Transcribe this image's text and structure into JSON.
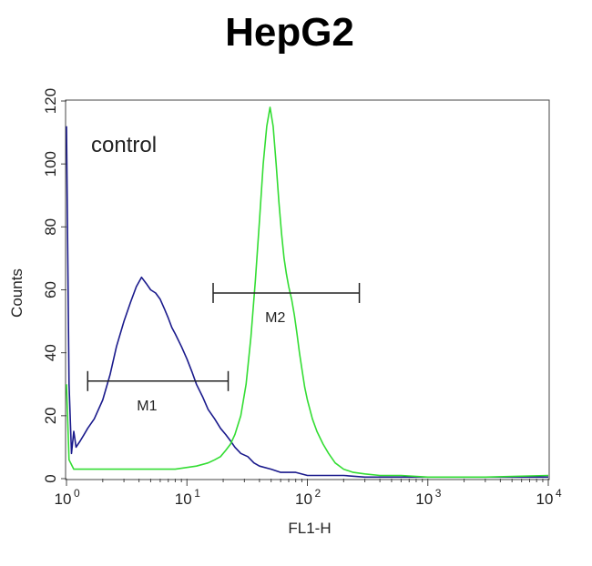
{
  "chart_data": {
    "type": "line",
    "title": "HepG2",
    "xlabel": "FL1-H",
    "ylabel": "Counts",
    "x_scale": "log",
    "xlim": [
      1,
      10000
    ],
    "ylim": [
      0,
      120
    ],
    "x_ticks": [
      {
        "base": "10",
        "exp": "0",
        "value": 1
      },
      {
        "base": "10",
        "exp": "1",
        "value": 10
      },
      {
        "base": "10",
        "exp": "2",
        "value": 100
      },
      {
        "base": "10",
        "exp": "3",
        "value": 1000
      },
      {
        "base": "10",
        "exp": "4",
        "value": 10000
      }
    ],
    "y_ticks": [
      "0",
      "20",
      "40",
      "60",
      "80",
      "100",
      "120"
    ],
    "annotation": "control",
    "grid": false,
    "series": [
      {
        "color": "#1a1a8c",
        "x": [
          1,
          1.05,
          1.1,
          1.15,
          1.2,
          1.3,
          1.4,
          1.5,
          1.7,
          2.0,
          2.3,
          2.6,
          3.0,
          3.4,
          3.8,
          4.2,
          4.6,
          5.0,
          5.5,
          6.0,
          6.5,
          7.0,
          7.5,
          8.0,
          9.0,
          10,
          11,
          12,
          13.5,
          15,
          17,
          19,
          21,
          23,
          25,
          28,
          32,
          36,
          40,
          50,
          60,
          80,
          100,
          150,
          200,
          300,
          500,
          1000,
          3000,
          10000
        ],
        "y": [
          112,
          30,
          8,
          15,
          10,
          12,
          14,
          16,
          19,
          25,
          33,
          42,
          50,
          56,
          61,
          64,
          62,
          60,
          59,
          57,
          54,
          51,
          48,
          46,
          42,
          38,
          34,
          30,
          26,
          22,
          19,
          16,
          14,
          12,
          10,
          8,
          7,
          5,
          4,
          3,
          2,
          2,
          1,
          1,
          1,
          0.5,
          0.5,
          0.5,
          0.5,
          0.5
        ]
      },
      {
        "color": "#33dd33",
        "x": [
          1,
          1.05,
          1.15,
          1.5,
          2,
          3,
          5,
          8,
          12,
          15,
          17,
          19,
          21,
          23,
          25,
          28,
          31,
          34,
          37,
          40,
          43,
          46,
          49,
          52,
          55,
          58,
          61,
          64,
          67,
          70,
          74,
          78,
          82,
          86,
          90,
          95,
          100,
          110,
          120,
          135,
          150,
          170,
          200,
          240,
          300,
          400,
          600,
          1000,
          3000,
          10000
        ],
        "y": [
          30,
          6,
          3,
          3,
          3,
          3,
          3,
          3,
          4,
          5,
          6,
          7,
          9,
          11,
          14,
          20,
          30,
          45,
          63,
          82,
          100,
          112,
          118,
          112,
          100,
          88,
          78,
          70,
          65,
          61,
          57,
          52,
          46,
          40,
          35,
          29,
          25,
          19,
          15,
          11,
          8,
          5,
          3,
          2,
          1.5,
          1,
          1,
          0.5,
          0.5,
          1
        ]
      }
    ],
    "markers": [
      {
        "label": "M1",
        "x_start": 1.5,
        "x_end": 22,
        "y": 31
      },
      {
        "label": "M2",
        "x_start": 16.5,
        "x_end": 270,
        "y": 59
      }
    ]
  }
}
